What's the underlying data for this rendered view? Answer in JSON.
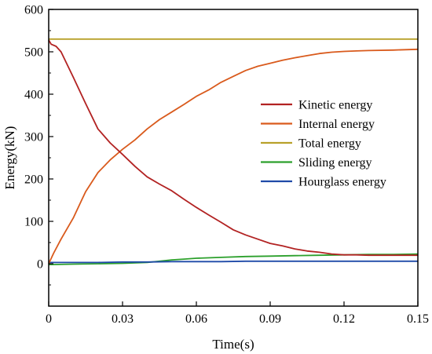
{
  "chart_data": {
    "type": "line",
    "xlabel": "Time(s)",
    "ylabel": "Energy(kN)",
    "xlim": [
      0,
      0.15
    ],
    "ylim": [
      -100,
      600
    ],
    "xticks": [
      0,
      0.03,
      0.06,
      0.09,
      0.12,
      0.15
    ],
    "xtick_labels": [
      "0",
      "0.03",
      "0.06",
      "0.09",
      "0.12",
      "0.15"
    ],
    "yticks": [
      0,
      100,
      200,
      300,
      400,
      500,
      600
    ],
    "ytick_labels": [
      "0",
      "100",
      "200",
      "300",
      "400",
      "500",
      "600"
    ],
    "grid": false,
    "legend_position": "right",
    "series": [
      {
        "name": "Kinetic energy",
        "color": "#b22222",
        "x": [
          0,
          0.001,
          0.003,
          0.005,
          0.01,
          0.015,
          0.02,
          0.025,
          0.03,
          0.035,
          0.04,
          0.045,
          0.05,
          0.055,
          0.06,
          0.065,
          0.07,
          0.075,
          0.08,
          0.085,
          0.09,
          0.095,
          0.1,
          0.105,
          0.11,
          0.115,
          0.12,
          0.125,
          0.13,
          0.14,
          0.15
        ],
        "y": [
          528,
          518,
          513,
          500,
          440,
          378,
          318,
          285,
          258,
          230,
          205,
          188,
          172,
          152,
          133,
          115,
          98,
          80,
          68,
          58,
          48,
          42,
          35,
          30,
          27,
          23,
          21,
          21,
          20,
          20,
          20
        ]
      },
      {
        "name": "Internal energy",
        "color": "#d95a1c",
        "x": [
          0,
          0.002,
          0.005,
          0.01,
          0.015,
          0.02,
          0.025,
          0.03,
          0.035,
          0.04,
          0.045,
          0.05,
          0.055,
          0.06,
          0.065,
          0.07,
          0.075,
          0.08,
          0.085,
          0.09,
          0.095,
          0.1,
          0.105,
          0.11,
          0.115,
          0.12,
          0.125,
          0.13,
          0.14,
          0.15
        ],
        "y": [
          0,
          25,
          58,
          108,
          170,
          215,
          245,
          270,
          292,
          318,
          340,
          358,
          376,
          395,
          410,
          428,
          442,
          456,
          466,
          473,
          480,
          486,
          491,
          496,
          499,
          501,
          502,
          503,
          504,
          506
        ]
      },
      {
        "name": "Total energy",
        "color": "#b8a12a",
        "x": [
          0,
          0.15
        ],
        "y": [
          530,
          530
        ]
      },
      {
        "name": "Sliding energy",
        "color": "#2ca02c",
        "x": [
          0,
          0.01,
          0.02,
          0.03,
          0.04,
          0.045,
          0.05,
          0.055,
          0.06,
          0.07,
          0.08,
          0.09,
          0.1,
          0.11,
          0.12,
          0.13,
          0.14,
          0.15
        ],
        "y": [
          -2,
          -1,
          0,
          1,
          3,
          6,
          9,
          11,
          13,
          15,
          17,
          18,
          19,
          20,
          21,
          22,
          22,
          23
        ]
      },
      {
        "name": "Hourglass energy",
        "color": "#1f4aa8",
        "x": [
          0,
          0.01,
          0.02,
          0.03,
          0.04,
          0.05,
          0.06,
          0.07,
          0.08,
          0.09,
          0.1,
          0.11,
          0.12,
          0.13,
          0.14,
          0.15
        ],
        "y": [
          3,
          3,
          3,
          4,
          4,
          5,
          5,
          5,
          6,
          6,
          6,
          6,
          6,
          6,
          6,
          6
        ]
      }
    ]
  }
}
